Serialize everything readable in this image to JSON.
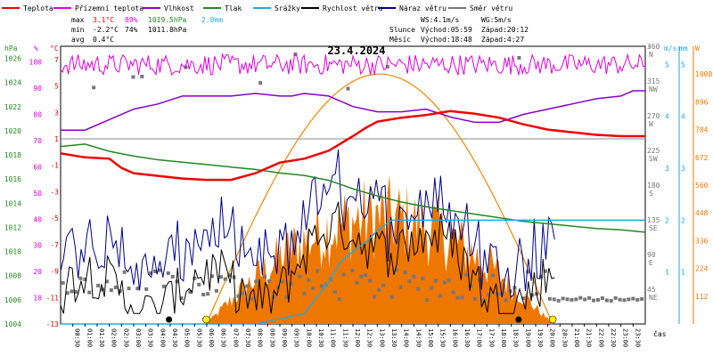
{
  "chart_data": {
    "type": "line",
    "title": "23.4.2024",
    "legend": [
      {
        "name": "Teplota",
        "color": "#ee0000"
      },
      {
        "name": "Přízemní teplota",
        "color": "#dd00dd"
      },
      {
        "name": "Vlhkost",
        "color": "#8800cc"
      },
      {
        "name": "Tlak",
        "color": "#228822"
      },
      {
        "name": "Srážky",
        "color": "#22aadd"
      },
      {
        "name": "Rychlost větru",
        "color": "#000000"
      },
      {
        "name": "Náraz větru",
        "color": "#000088"
      },
      {
        "name": "Směr větru",
        "color": "#777777"
      }
    ],
    "stats": {
      "max": {
        "label": "max",
        "temp": "3.1°C",
        "hum": "89%",
        "press": "1019.5hPa",
        "rain": "2.0mm"
      },
      "min": {
        "label": "min",
        "temp": "-2.2°C",
        "hum": "74%",
        "press": "1011.8hPa"
      },
      "avg": {
        "label": "avg",
        "temp": "0.4°C"
      }
    },
    "wind_info": {
      "ws": "WS:4.1m/s",
      "wg": "WG:5m/s"
    },
    "sun": {
      "label": "Slunce",
      "rise": "Východ:05:59",
      "set": "Západ:20:12"
    },
    "moon": {
      "label": "Měsíc",
      "rise": "Východ:18:48",
      "set": "Západ:4:27"
    },
    "xlabel": "čas",
    "x_ticks": [
      "00:30",
      "01:00",
      "01:30",
      "02:00",
      "02:30",
      "03:00",
      "03:30",
      "04:00",
      "04:30",
      "05:00",
      "05:30",
      "06:00",
      "06:30",
      "07:00",
      "07:30",
      "08:00",
      "08:30",
      "09:00",
      "09:30",
      "10:00",
      "10:30",
      "11:00",
      "11:30",
      "12:00",
      "12:30",
      "13:00",
      "13:30",
      "14:00",
      "14:30",
      "15:00",
      "15:30",
      "16:00",
      "16:30",
      "17:00",
      "17:30",
      "18:00",
      "18:30",
      "19:00",
      "19:30",
      "20:00",
      "20:30",
      "21:00",
      "21:30",
      "22:00",
      "22:30",
      "23:00",
      "23:30"
    ],
    "axes": {
      "press": {
        "unit": "hPa",
        "color": "#228822",
        "ticks": [
          "1026",
          "1024",
          "1022",
          "1020",
          "1018",
          "1016",
          "1014",
          "1012",
          "1010",
          "1008",
          "1006",
          "1004"
        ],
        "range": [
          1004,
          1027
        ]
      },
      "hum": {
        "unit": "%",
        "color": "#dd00dd",
        "ticks": [
          "100",
          "90",
          "80",
          "70",
          "60",
          "50",
          "40",
          "30",
          "20",
          "10"
        ],
        "range": [
          0,
          106
        ]
      },
      "temp": {
        "unit": "°C",
        "color": "#ee0000",
        "ticks": [
          "7",
          "5",
          "3",
          "1",
          "-1",
          "-3",
          "-5",
          "-7",
          "-9",
          "-11",
          "-13"
        ],
        "range": [
          -13,
          8
        ]
      },
      "dir": {
        "unit": "°",
        "color": "#777777",
        "ticks": [
          "360\nN",
          "315\nNW",
          "270\nW",
          "225\nSW",
          "180\nS",
          "135\nSE",
          "90\nE",
          "45\nNE"
        ],
        "range": [
          0,
          360
        ]
      },
      "ws": {
        "unit": "m/s",
        "color": "#22aadd",
        "ticks": [
          "5",
          "4",
          "3",
          "2",
          "1"
        ],
        "range": [
          0,
          5.35
        ]
      },
      "rain": {
        "unit": "mm",
        "color": "#22aadd",
        "ticks": [
          "5",
          "4",
          "3",
          "2",
          "1"
        ],
        "range": [
          0,
          5.35
        ]
      },
      "solar": {
        "unit": "W",
        "color": "#ee7700",
        "ticks": [
          "1008",
          "896",
          "784",
          "672",
          "560",
          "448",
          "336",
          "224",
          "112"
        ],
        "range": [
          0,
          1120
        ]
      }
    },
    "series": {
      "temp_time": [
        0,
        1,
        2,
        2.5,
        3,
        4,
        5,
        6,
        7,
        8,
        9,
        10,
        11,
        12,
        12.5,
        13,
        14,
        15,
        16,
        17,
        18,
        19,
        20,
        21,
        22,
        23,
        24
      ],
      "temp": [
        -0.1,
        -0.4,
        -0.5,
        -1.2,
        -1.6,
        -1.8,
        -2.0,
        -2.1,
        -2.1,
        -1.6,
        -0.8,
        -0.5,
        0.1,
        1.2,
        1.8,
        2.3,
        2.6,
        2.8,
        3.1,
        2.9,
        2.6,
        2.1,
        1.7,
        1.5,
        1.3,
        1.2,
        1.2
      ],
      "hum_time": [
        0,
        1,
        2,
        3,
        4,
        5,
        6,
        7,
        8,
        9,
        9.5,
        10,
        11,
        12,
        13,
        14,
        15,
        16,
        17,
        18,
        19,
        20,
        21,
        22,
        23,
        23.5,
        24
      ],
      "hum": [
        74,
        74,
        78,
        82,
        84,
        87,
        87,
        87,
        88,
        87,
        87,
        88,
        87,
        83,
        81,
        81,
        82,
        79,
        77,
        77,
        80,
        82,
        84,
        86,
        87,
        89,
        89
      ],
      "press_time": [
        0,
        1,
        2,
        3,
        4,
        5,
        6,
        7,
        8,
        9,
        10,
        11,
        12,
        13,
        14,
        15,
        16,
        17,
        18,
        19,
        20,
        21,
        22,
        23,
        24
      ],
      "press": [
        1018.7,
        1018.9,
        1018.3,
        1017.9,
        1017.6,
        1017.4,
        1017.2,
        1017.0,
        1016.8,
        1016.5,
        1016.3,
        1015.9,
        1015.2,
        1014.6,
        1014.1,
        1013.7,
        1013.4,
        1013.1,
        1012.8,
        1012.5,
        1012.3,
        1012.1,
        1011.9,
        1011.8,
        1011.6
      ],
      "rain_time": [
        0,
        8,
        9,
        10,
        10.5,
        11,
        11.5,
        12,
        12.3,
        12.6,
        13,
        13.3,
        13.6,
        14,
        24
      ],
      "rain": [
        0,
        0,
        0.1,
        0.2,
        0.5,
        0.8,
        1.2,
        1.4,
        1.5,
        1.6,
        1.8,
        1.9,
        2.0,
        2.0,
        2.0
      ],
      "sunrise": 5.98,
      "sunset": 20.2,
      "solar_peak": 1008,
      "solar_peak_time": 13.1,
      "feels_like_value": 100,
      "ground_level_dir": 30,
      "moon_rise_time": 18.8,
      "moon_set_time": 4.45
    }
  }
}
